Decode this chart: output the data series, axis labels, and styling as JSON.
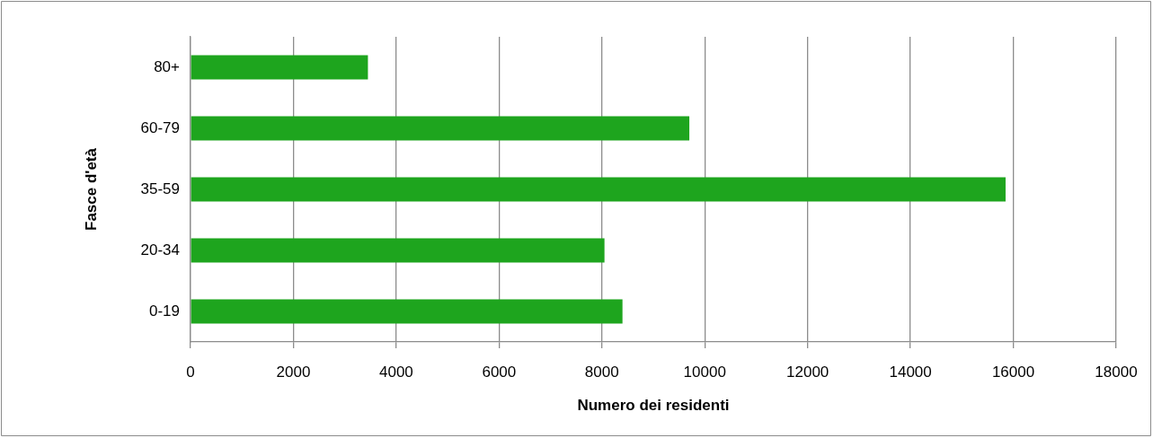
{
  "chart_data": {
    "type": "bar",
    "orientation": "horizontal",
    "categories": [
      "80+",
      "60-79",
      "35-59",
      "20-34",
      "0-19"
    ],
    "values": [
      3450,
      9700,
      15850,
      8050,
      8400
    ],
    "color": "#1ea51e",
    "xlim": [
      0,
      18000
    ],
    "xticks": [
      0,
      2000,
      4000,
      6000,
      8000,
      10000,
      12000,
      14000,
      16000,
      18000
    ],
    "xlabel": "Numero dei residenti",
    "ylabel": "Fasce d'età",
    "grid": "x"
  }
}
